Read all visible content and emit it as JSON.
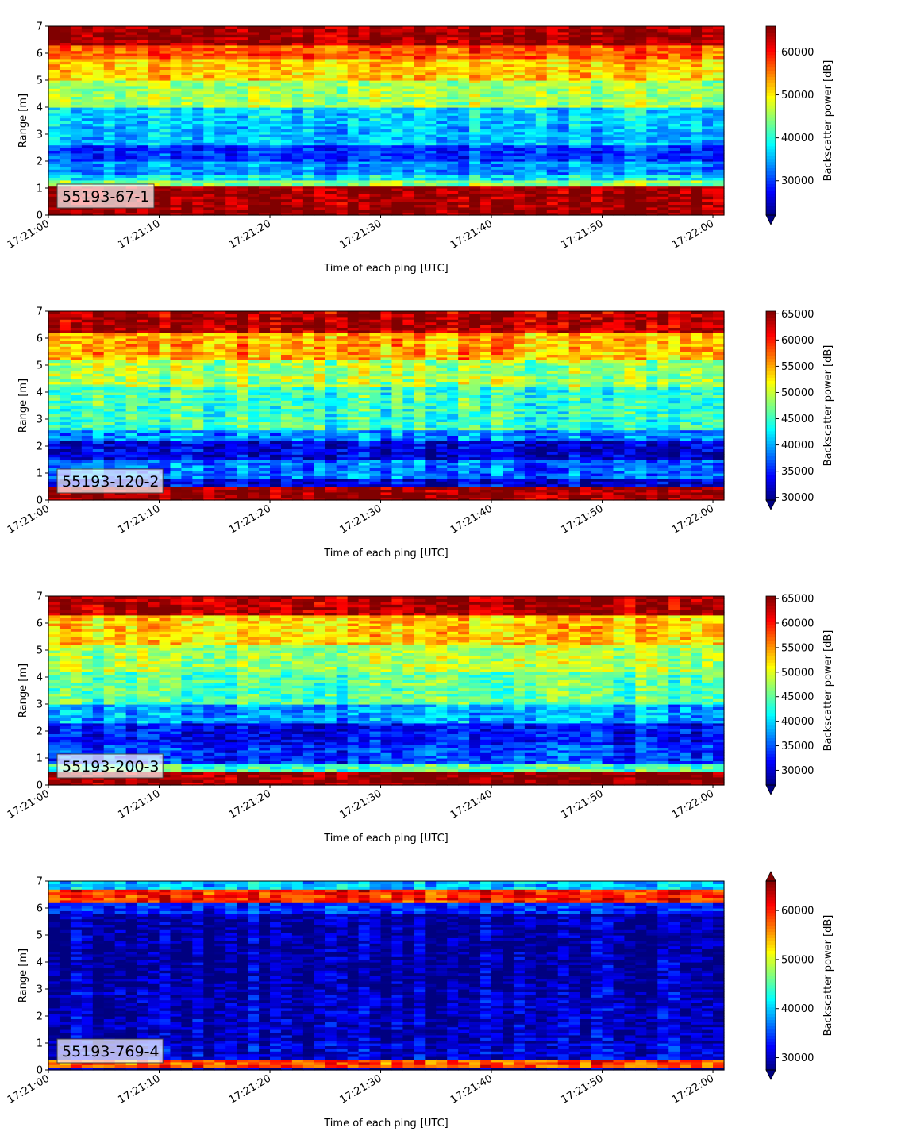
{
  "chart_data": [
    {
      "type": "heatmap",
      "label": "55193-67-1",
      "xlabel": "Time of each ping [UTC]",
      "ylabel": "Range [m]",
      "x_range": [
        "17:21:00",
        "17:22:01"
      ],
      "x_ticks": [
        "17:21:00",
        "17:21:10",
        "17:21:20",
        "17:21:30",
        "17:21:40",
        "17:21:50",
        "17:22:00"
      ],
      "ylim": [
        0,
        7
      ],
      "y_ticks": [
        "0",
        "1",
        "2",
        "3",
        "4",
        "5",
        "6",
        "7"
      ],
      "colorbar": {
        "label": "Backscatter power [dB]",
        "range": [
          22000,
          66000
        ],
        "ticks": [
          "30000",
          "40000",
          "50000",
          "60000"
        ],
        "extend_min": true,
        "extend_max": false
      },
      "colormap": "jet",
      "bands": [
        {
          "from": 0.0,
          "to": 0.25,
          "value": 66000
        },
        {
          "from": 0.25,
          "to": 1.1,
          "value": 65000
        },
        {
          "from": 1.1,
          "to": 1.3,
          "value": 45000
        },
        {
          "from": 1.3,
          "to": 1.55,
          "value": 38000
        },
        {
          "from": 1.55,
          "to": 2.0,
          "value": 34000
        },
        {
          "from": 2.0,
          "to": 2.6,
          "value": 30000
        },
        {
          "from": 2.6,
          "to": 3.3,
          "value": 36000
        },
        {
          "from": 3.3,
          "to": 4.0,
          "value": 37000
        },
        {
          "from": 4.0,
          "to": 5.0,
          "value": 46000
        },
        {
          "from": 5.0,
          "to": 5.8,
          "value": 52000
        },
        {
          "from": 5.8,
          "to": 6.3,
          "value": 57000
        },
        {
          "from": 6.3,
          "to": 7.0,
          "value": 65000
        }
      ]
    },
    {
      "type": "heatmap",
      "label": "55193-120-2",
      "xlabel": "Time of each ping [UTC]",
      "ylabel": "Range [m]",
      "x_range": [
        "17:21:00",
        "17:22:01"
      ],
      "x_ticks": [
        "17:21:00",
        "17:21:10",
        "17:21:20",
        "17:21:30",
        "17:21:40",
        "17:21:50",
        "17:22:00"
      ],
      "ylim": [
        0,
        7
      ],
      "y_ticks": [
        "0",
        "1",
        "2",
        "3",
        "4",
        "5",
        "6",
        "7"
      ],
      "colorbar": {
        "label": "Backscatter power [dB]",
        "range": [
          29500,
          65500
        ],
        "ticks": [
          "30000",
          "35000",
          "40000",
          "45000",
          "50000",
          "55000",
          "60000",
          "65000"
        ],
        "extend_min": true,
        "extend_max": false
      },
      "colormap": "jet",
      "bands": [
        {
          "from": 0.0,
          "to": 0.5,
          "value": 65000
        },
        {
          "from": 0.5,
          "to": 0.8,
          "value": 33000
        },
        {
          "from": 0.8,
          "to": 1.5,
          "value": 38000
        },
        {
          "from": 1.5,
          "to": 2.2,
          "value": 33000
        },
        {
          "from": 2.2,
          "to": 2.6,
          "value": 39000
        },
        {
          "from": 2.6,
          "to": 3.4,
          "value": 45000
        },
        {
          "from": 3.4,
          "to": 4.2,
          "value": 45000
        },
        {
          "from": 4.2,
          "to": 5.2,
          "value": 49000
        },
        {
          "from": 5.2,
          "to": 6.2,
          "value": 55000
        },
        {
          "from": 6.2,
          "to": 7.0,
          "value": 64000
        }
      ]
    },
    {
      "type": "heatmap",
      "label": "55193-200-3",
      "xlabel": "Time of each ping [UTC]",
      "ylabel": "Range [m]",
      "x_range": [
        "17:21:00",
        "17:22:01"
      ],
      "x_ticks": [
        "17:21:00",
        "17:21:10",
        "17:21:20",
        "17:21:30",
        "17:21:40",
        "17:21:50",
        "17:22:00"
      ],
      "ylim": [
        0,
        7
      ],
      "y_ticks": [
        "0",
        "1",
        "2",
        "3",
        "4",
        "5",
        "6",
        "7"
      ],
      "colorbar": {
        "label": "Backscatter power [dB]",
        "range": [
          27000,
          65500
        ],
        "ticks": [
          "30000",
          "35000",
          "40000",
          "45000",
          "50000",
          "55000",
          "60000",
          "65000"
        ],
        "extend_min": true,
        "extend_max": false
      },
      "colormap": "jet",
      "bands": [
        {
          "from": 0.0,
          "to": 0.5,
          "value": 65000
        },
        {
          "from": 0.5,
          "to": 0.8,
          "value": 44000
        },
        {
          "from": 0.8,
          "to": 1.5,
          "value": 34000
        },
        {
          "from": 1.5,
          "to": 2.3,
          "value": 32000
        },
        {
          "from": 2.3,
          "to": 3.0,
          "value": 38000
        },
        {
          "from": 3.0,
          "to": 4.2,
          "value": 45000
        },
        {
          "from": 4.2,
          "to": 5.2,
          "value": 48000
        },
        {
          "from": 5.2,
          "to": 6.3,
          "value": 53000
        },
        {
          "from": 6.3,
          "to": 7.0,
          "value": 64000
        }
      ]
    },
    {
      "type": "heatmap",
      "label": "55193-769-4",
      "xlabel": "Time of each ping [UTC]",
      "ylabel": "Range [m]",
      "x_range": [
        "17:21:00",
        "17:22:01"
      ],
      "x_ticks": [
        "17:21:00",
        "17:21:10",
        "17:21:20",
        "17:21:30",
        "17:21:40",
        "17:21:50",
        "17:22:00"
      ],
      "ylim": [
        0,
        7
      ],
      "y_ticks": [
        "0",
        "1",
        "2",
        "3",
        "4",
        "5",
        "6",
        "7"
      ],
      "colorbar": {
        "label": "Backscatter power [dB]",
        "range": [
          27500,
          66000
        ],
        "ticks": [
          "30000",
          "40000",
          "50000",
          "60000"
        ],
        "extend_min": true,
        "extend_max": true
      },
      "colormap": "jet",
      "bands": [
        {
          "from": 0.0,
          "to": 0.15,
          "value": 29000
        },
        {
          "from": 0.15,
          "to": 0.4,
          "value": 58000
        },
        {
          "from": 0.4,
          "to": 1.0,
          "value": 31000
        },
        {
          "from": 1.0,
          "to": 3.0,
          "value": 30000
        },
        {
          "from": 3.0,
          "to": 5.8,
          "value": 29000
        },
        {
          "from": 5.8,
          "to": 6.2,
          "value": 34000
        },
        {
          "from": 6.2,
          "to": 6.7,
          "value": 60000
        },
        {
          "from": 6.7,
          "to": 7.0,
          "value": 40000
        }
      ]
    }
  ]
}
